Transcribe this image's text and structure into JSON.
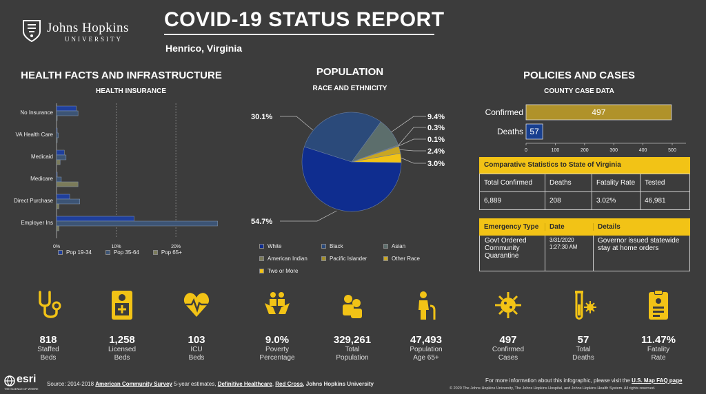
{
  "header": {
    "logo_name": "Johns Hopkins",
    "logo_sub": "UNIVERSITY",
    "title": "COVID-19 STATUS REPORT",
    "location": "Henrico, Virginia"
  },
  "health": {
    "heading": "HEALTH FACTS AND INFRASTRUCTURE",
    "subheading": "HEALTH INSURANCE",
    "chart_data": {
      "type": "bar",
      "orientation": "horizontal",
      "categories": [
        "No Insurance",
        "VA Health Care",
        "Medicaid",
        "Medicare",
        "Direct Purchase",
        "Employer Ins"
      ],
      "series": [
        {
          "name": "Pop 19-34",
          "values": [
            3.3,
            0.1,
            1.3,
            0.1,
            2.2,
            13.0
          ]
        },
        {
          "name": "Pop 35-64",
          "values": [
            3.6,
            0.3,
            1.6,
            0.8,
            3.9,
            27.0
          ]
        },
        {
          "name": "Pop 65+",
          "values": [
            0.1,
            0.1,
            0.6,
            3.6,
            0.4,
            0.4
          ]
        }
      ],
      "xticks": [
        "0%",
        "10%",
        "20%"
      ],
      "xlim": [
        0,
        27.5
      ],
      "grid": true,
      "legend": "bottom"
    }
  },
  "population": {
    "heading": "POPULATION",
    "subheading": "RACE AND ETHNICITY",
    "chart_data": {
      "type": "pie",
      "slices": [
        {
          "name": "White",
          "value": 54.7,
          "label": "54.7%"
        },
        {
          "name": "Black",
          "value": 30.1,
          "label": "30.1%"
        },
        {
          "name": "Asian",
          "value": 9.4,
          "label": "9.4%"
        },
        {
          "name": "American Indian",
          "value": 0.3,
          "label": "0.3%"
        },
        {
          "name": "Pacific Islander",
          "value": 0.1,
          "label": "0.1%"
        },
        {
          "name": "Other Race",
          "value": 2.4,
          "label": "2.4%"
        },
        {
          "name": "Two or More",
          "value": 3.0,
          "label": "3.0%"
        }
      ],
      "legend": "bottom"
    }
  },
  "policies": {
    "heading": "POLICIES AND CASES",
    "subheading": "COUNTY CASE DATA",
    "chart_data": {
      "type": "bar",
      "orientation": "horizontal",
      "categories": [
        "Confirmed",
        "Deaths"
      ],
      "values": [
        497,
        57
      ],
      "value_labels": [
        "497",
        "57"
      ],
      "xticks": [
        "0",
        "100",
        "200",
        "300",
        "400",
        "500"
      ],
      "xlim": [
        0,
        500
      ]
    },
    "comparative": {
      "title": "Comparative Statistics to State of Virginia",
      "headers": [
        "Total Confirmed",
        "Deaths",
        "Fatality Rate",
        "Tested"
      ],
      "values": [
        "6,889",
        "208",
        "3.02%",
        "46,981"
      ]
    },
    "emergency": {
      "headers": [
        "Emergency Type",
        "Date",
        "Details"
      ],
      "type": "Govt Ordered Community Quarantine",
      "date_line1": "3/31/2020",
      "date_line2": "1:27:30 AM",
      "details": "Governor issued statewide stay at home orders"
    }
  },
  "stats": [
    {
      "value": "818",
      "label1": "Staffed",
      "label2": "Beds",
      "icon": "stethoscope-icon"
    },
    {
      "value": "1,258",
      "label1": "Licensed",
      "label2": "Beds",
      "icon": "hospital-bed-icon"
    },
    {
      "value": "103",
      "label1": "ICU",
      "label2": "Beds",
      "icon": "heart-monitor-icon"
    },
    {
      "value": "9.0%",
      "label1": "Poverty",
      "label2": "Percentage",
      "icon": "hands-people-icon"
    },
    {
      "value": "329,261",
      "label1": "Total",
      "label2": "Population",
      "icon": "population-icon"
    },
    {
      "value": "47,493",
      "label1": "Population",
      "label2": "Age 65+",
      "icon": "elderly-icon"
    },
    {
      "value": "497",
      "label1": "Confirmed",
      "label2": "Cases",
      "icon": "virus-icon"
    },
    {
      "value": "57",
      "label1": "Total",
      "label2": "Deaths",
      "icon": "test-tube-icon"
    },
    {
      "value": "11.47%",
      "label1": "Fatality",
      "label2": "Rate",
      "icon": "clipboard-icon"
    }
  ],
  "footer": {
    "esri": "esri",
    "esri_tag": "THE SCIENCE OF WHERE",
    "source_prefix": "Source: 2014-2018 ",
    "source_acs": "American Community Survey",
    "source_mid": " 5-year estimates, ",
    "source_dh": "Definitive Healthcare",
    "source_comma": ", ",
    "source_rc": "Red Cross",
    "source_end": ", Johns Hopkins University",
    "more_info": "For more information about this infographic, please visit the ",
    "faq_link": "U.S. Map FAQ page",
    "copyright": "© 2020 The Johns Hopkins University, The Johns Hopkins Hospital, and Johns Hopkins Health System. All rights reserved."
  },
  "colors": {
    "background": "#3c3c3c",
    "accent_yellow": "#f2c316",
    "pop_19_34": "#1f3f9c",
    "pop_35_64": "#3c5475",
    "pop_65_plus": "#7b7b5a",
    "white_slice": "#0f2d8f",
    "black_slice": "#2b4a7a",
    "asian_slice": "#5c6e6c",
    "confirmed_bar": "#b0922a",
    "deaths_bar": "#183f8f"
  }
}
